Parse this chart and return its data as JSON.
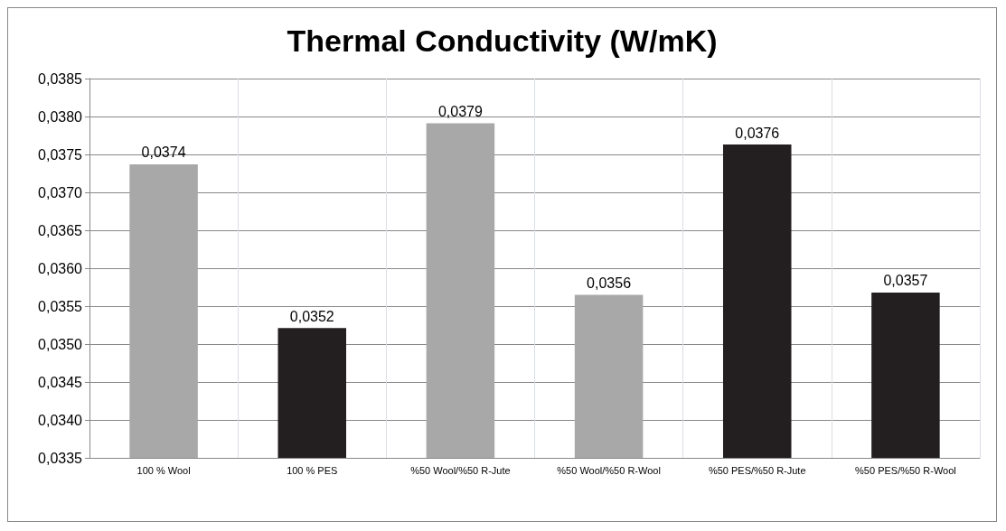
{
  "chart_data": {
    "type": "bar",
    "title": "Thermal Conductivity (W/mK)",
    "categories": [
      "100 % Wool",
      "100 % PES",
      "%50 Wool/%50 R-Jute",
      "%50 Wool/%50 R-Wool",
      "%50 PES/%50 R-Jute",
      "%50 PES/%50 R-Wool"
    ],
    "values": [
      0.03737,
      0.03521,
      0.03791,
      0.03565,
      0.03763,
      0.03568
    ],
    "value_labels": [
      "0,0374",
      "0,0352",
      "0,0379",
      "0,0356",
      "0,0376",
      "0,0357"
    ],
    "colors": [
      "#a8a8a8",
      "#231f20",
      "#a8a8a8",
      "#a8a8a8",
      "#231f20",
      "#231f20"
    ],
    "ylim": [
      0.0335,
      0.0385
    ],
    "yticks": [
      {
        "value": 0.0335,
        "label": "0,0335"
      },
      {
        "value": 0.034,
        "label": "0,0340"
      },
      {
        "value": 0.0345,
        "label": "0,0345"
      },
      {
        "value": 0.035,
        "label": "0,0350"
      },
      {
        "value": 0.0355,
        "label": "0,0355"
      },
      {
        "value": 0.036,
        "label": "0,0360"
      },
      {
        "value": 0.0365,
        "label": "0,0365"
      },
      {
        "value": 0.037,
        "label": "0,0370"
      },
      {
        "value": 0.0375,
        "label": "0,0375"
      },
      {
        "value": 0.038,
        "label": "0,0380"
      },
      {
        "value": 0.0385,
        "label": "0,0385"
      }
    ],
    "grid": true
  }
}
